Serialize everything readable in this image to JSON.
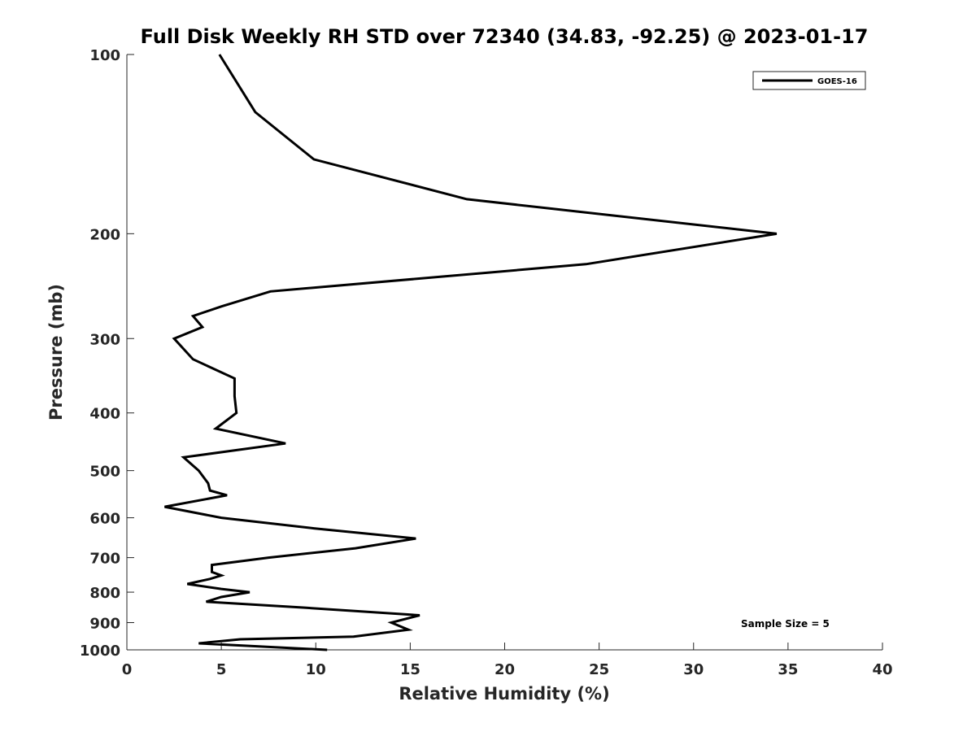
{
  "chart_data": {
    "type": "line",
    "title": "Full Disk Weekly RH STD over 72340 (34.83, -92.25) @ 2023-01-17",
    "xlabel": "Relative Humidity (%)",
    "ylabel": "Pressure (mb)",
    "xlim": [
      0,
      40
    ],
    "ylim": [
      100,
      1000
    ],
    "y_scale": "log",
    "y_reversed": true,
    "x_ticks": [
      0,
      5,
      10,
      15,
      20,
      25,
      30,
      35,
      40
    ],
    "y_ticks": [
      100,
      200,
      300,
      400,
      500,
      600,
      700,
      800,
      900,
      1000
    ],
    "legend_position": "top-right",
    "grid": false,
    "annotation": "Sample Size = 5",
    "series": [
      {
        "name": "GOES-16",
        "color": "#000000",
        "points": [
          [
            4.9,
            100
          ],
          [
            6.8,
            125
          ],
          [
            9.9,
            150
          ],
          [
            18.0,
            175
          ],
          [
            34.4,
            200
          ],
          [
            24.3,
            225
          ],
          [
            7.6,
            250
          ],
          [
            5.0,
            265
          ],
          [
            3.5,
            275
          ],
          [
            4.0,
            287
          ],
          [
            2.5,
            300
          ],
          [
            3.5,
            325
          ],
          [
            5.7,
            350
          ],
          [
            5.7,
            375
          ],
          [
            5.8,
            400
          ],
          [
            4.7,
            425
          ],
          [
            8.4,
            450
          ],
          [
            3.0,
            475
          ],
          [
            3.8,
            500
          ],
          [
            4.3,
            525
          ],
          [
            4.4,
            540
          ],
          [
            5.3,
            550
          ],
          [
            2.0,
            575
          ],
          [
            5.0,
            600
          ],
          [
            9.9,
            625
          ],
          [
            15.3,
            650
          ],
          [
            12.1,
            675
          ],
          [
            7.5,
            700
          ],
          [
            4.5,
            720
          ],
          [
            4.5,
            740
          ],
          [
            5.0,
            750
          ],
          [
            4.4,
            760
          ],
          [
            3.2,
            775
          ],
          [
            5.0,
            790
          ],
          [
            6.5,
            800
          ],
          [
            5.0,
            815
          ],
          [
            4.2,
            830
          ],
          [
            9.5,
            850
          ],
          [
            15.5,
            875
          ],
          [
            14.0,
            900
          ],
          [
            14.9,
            925
          ],
          [
            12.0,
            950
          ],
          [
            6.0,
            960
          ],
          [
            3.8,
            975
          ],
          [
            10.6,
            1000
          ]
        ]
      }
    ]
  }
}
